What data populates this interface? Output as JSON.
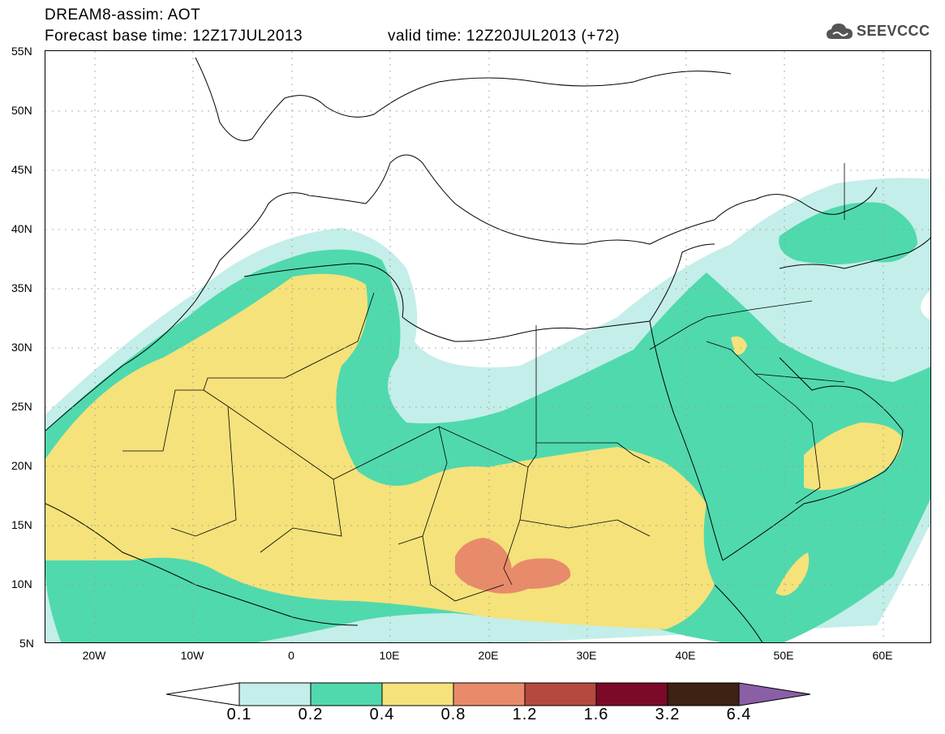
{
  "header": {
    "title": "DREAM8-assim: AOT",
    "forecast_base": "Forecast base time: 12Z17JUL2013",
    "valid_time": "valid time: 12Z20JUL2013 (+72)"
  },
  "logo": {
    "text": "SEEVCCC",
    "icon": "cloud-icon"
  },
  "map": {
    "lat_labels": [
      "55N",
      "50N",
      "45N",
      "40N",
      "35N",
      "30N",
      "25N",
      "20N",
      "15N",
      "10N",
      "5N"
    ],
    "lon_labels": [
      "20W",
      "10W",
      "0",
      "10E",
      "20E",
      "30E",
      "40E",
      "50E",
      "60E"
    ],
    "extent": {
      "lon": [
        -25,
        65
      ],
      "lat": [
        5,
        55
      ]
    }
  },
  "colorbar": {
    "labels": [
      "0.1",
      "0.2",
      "0.4",
      "0.8",
      "1.2",
      "1.6",
      "3.2",
      "6.4"
    ],
    "colors": [
      "#ffffff",
      "#c4eee9",
      "#50d9ad",
      "#f5e27a",
      "#e88b6a",
      "#b5493f",
      "#7b0a28",
      "#3e2212",
      "#8a5fa6"
    ]
  },
  "colors": {
    "aot_01_02": "#c4eee9",
    "aot_02_04": "#50d9ad",
    "aot_04_08": "#f5e27a",
    "aot_08_12": "#e88b6a"
  }
}
